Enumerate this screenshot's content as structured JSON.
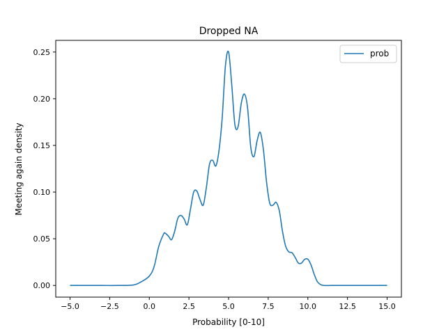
{
  "chart_data": {
    "type": "line",
    "title": "Dropped NA",
    "xlabel": "Probability [0-10]",
    "ylabel": "Meeting again density",
    "xlim": [
      -5.9,
      15.9
    ],
    "ylim": [
      -0.0125,
      0.2625
    ],
    "xticks": [
      -5.0,
      -2.5,
      0.0,
      2.5,
      5.0,
      7.5,
      10.0,
      12.5,
      15.0
    ],
    "xtick_labels": [
      "−5.0",
      "−2.5",
      "0.0",
      "2.5",
      "5.0",
      "7.5",
      "10.0",
      "12.5",
      "15.0"
    ],
    "yticks": [
      0.0,
      0.05,
      0.1,
      0.15,
      0.2,
      0.25
    ],
    "ytick_labels": [
      "0.00",
      "0.05",
      "0.10",
      "0.15",
      "0.20",
      "0.25"
    ],
    "grid": false,
    "legend": {
      "position": "top-right",
      "entries": [
        "prob"
      ]
    },
    "series": [
      {
        "name": "prob",
        "color": "#1f77b4",
        "x": [
          -5,
          -4,
          -3,
          -2,
          -1,
          -0.5,
          0,
          0.3,
          0.6,
          0.9,
          1.0,
          1.2,
          1.4,
          1.6,
          1.8,
          2.0,
          2.2,
          2.4,
          2.6,
          2.8,
          3.0,
          3.2,
          3.4,
          3.6,
          3.8,
          4.0,
          4.2,
          4.4,
          4.6,
          4.8,
          5.0,
          5.2,
          5.4,
          5.6,
          5.8,
          6.0,
          6.2,
          6.4,
          6.6,
          6.8,
          7.0,
          7.2,
          7.4,
          7.6,
          7.8,
          8.0,
          8.2,
          8.4,
          8.6,
          8.8,
          9.0,
          9.2,
          9.4,
          9.6,
          9.8,
          10.0,
          10.2,
          10.4,
          10.6,
          10.8,
          11.0,
          11.5,
          12,
          13,
          14,
          15
        ],
        "y": [
          0.0,
          0.0,
          0.0,
          0.0,
          0.0005,
          0.004,
          0.01,
          0.02,
          0.042,
          0.055,
          0.056,
          0.053,
          0.049,
          0.058,
          0.072,
          0.075,
          0.071,
          0.065,
          0.082,
          0.1,
          0.101,
          0.092,
          0.086,
          0.105,
          0.13,
          0.134,
          0.128,
          0.145,
          0.18,
          0.235,
          0.25,
          0.215,
          0.172,
          0.17,
          0.195,
          0.205,
          0.19,
          0.148,
          0.138,
          0.155,
          0.164,
          0.145,
          0.11,
          0.088,
          0.086,
          0.089,
          0.08,
          0.058,
          0.042,
          0.036,
          0.035,
          0.03,
          0.024,
          0.024,
          0.028,
          0.028,
          0.022,
          0.012,
          0.004,
          0.001,
          0.0,
          0.0,
          0.0,
          0.0,
          0.0,
          0.0
        ]
      }
    ]
  }
}
